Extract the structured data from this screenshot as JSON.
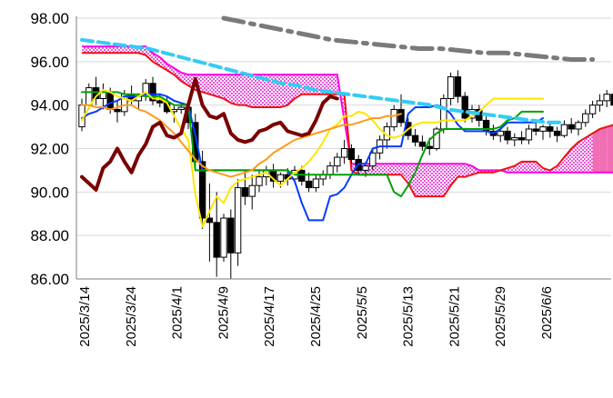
{
  "chart_data": {
    "type": "candlestick",
    "title": "",
    "xlabel": "",
    "ylabel": "",
    "ylim": [
      86,
      98
    ],
    "yticks": [
      "86.00",
      "88.00",
      "90.00",
      "92.00",
      "94.00",
      "96.00",
      "98.00"
    ],
    "x_tick_labels": [
      "2025/3/14",
      "2025/3/24",
      "2025/4/1",
      "2025/4/9",
      "2025/4/17",
      "2025/4/25",
      "2025/5/5",
      "2025/5/13",
      "2025/5/21",
      "2025/5/29",
      "2025/6/6"
    ],
    "grid": "horizontal",
    "legend": "none",
    "candles": [
      {
        "o": 93.0,
        "h": 94.3,
        "l": 92.8,
        "c": 94.0
      },
      {
        "o": 94.0,
        "h": 95.0,
        "l": 93.8,
        "c": 94.8
      },
      {
        "o": 94.8,
        "h": 95.3,
        "l": 94.0,
        "c": 94.3
      },
      {
        "o": 94.3,
        "h": 95.0,
        "l": 93.8,
        "c": 94.6
      },
      {
        "o": 94.6,
        "h": 94.8,
        "l": 93.6,
        "c": 93.8
      },
      {
        "o": 93.8,
        "h": 94.2,
        "l": 93.2,
        "c": 93.7
      },
      {
        "o": 93.7,
        "h": 94.7,
        "l": 93.5,
        "c": 94.5
      },
      {
        "o": 94.5,
        "h": 94.9,
        "l": 94.0,
        "c": 94.2
      },
      {
        "o": 94.2,
        "h": 94.5,
        "l": 93.8,
        "c": 94.4
      },
      {
        "o": 94.4,
        "h": 95.2,
        "l": 94.2,
        "c": 95.0
      },
      {
        "o": 95.0,
        "h": 95.3,
        "l": 94.0,
        "c": 94.2
      },
      {
        "o": 94.2,
        "h": 94.5,
        "l": 93.9,
        "c": 94.1
      },
      {
        "o": 94.1,
        "h": 94.4,
        "l": 93.6,
        "c": 93.7
      },
      {
        "o": 93.7,
        "h": 94.0,
        "l": 93.2,
        "c": 93.8
      },
      {
        "o": 93.8,
        "h": 94.1,
        "l": 93.6,
        "c": 93.9
      },
      {
        "o": 93.9,
        "h": 94.2,
        "l": 92.9,
        "c": 93.2
      },
      {
        "o": 93.2,
        "h": 93.6,
        "l": 91.0,
        "c": 91.4
      },
      {
        "o": 91.4,
        "h": 91.9,
        "l": 88.3,
        "c": 88.8
      },
      {
        "o": 88.8,
        "h": 90.4,
        "l": 86.8,
        "c": 88.6
      },
      {
        "o": 88.6,
        "h": 90.0,
        "l": 86.1,
        "c": 87.0
      },
      {
        "o": 87.0,
        "h": 89.0,
        "l": 86.8,
        "c": 88.8
      },
      {
        "o": 88.8,
        "h": 89.2,
        "l": 86.0,
        "c": 87.2
      },
      {
        "o": 87.2,
        "h": 90.6,
        "l": 86.6,
        "c": 90.2
      },
      {
        "o": 90.2,
        "h": 91.0,
        "l": 89.4,
        "c": 89.8
      },
      {
        "o": 89.8,
        "h": 90.8,
        "l": 89.2,
        "c": 90.3
      },
      {
        "o": 90.3,
        "h": 91.0,
        "l": 90.0,
        "c": 90.7
      },
      {
        "o": 90.7,
        "h": 91.2,
        "l": 90.3,
        "c": 91.0
      },
      {
        "o": 91.0,
        "h": 91.3,
        "l": 90.2,
        "c": 90.5
      },
      {
        "o": 90.5,
        "h": 90.9,
        "l": 90.2,
        "c": 90.8
      },
      {
        "o": 90.8,
        "h": 91.1,
        "l": 90.3,
        "c": 90.6
      },
      {
        "o": 90.6,
        "h": 91.2,
        "l": 90.4,
        "c": 91.0
      },
      {
        "o": 91.0,
        "h": 91.2,
        "l": 90.3,
        "c": 90.5
      },
      {
        "o": 90.5,
        "h": 90.9,
        "l": 90.0,
        "c": 90.2
      },
      {
        "o": 90.2,
        "h": 90.8,
        "l": 90.0,
        "c": 90.6
      },
      {
        "o": 90.6,
        "h": 91.0,
        "l": 90.3,
        "c": 90.8
      },
      {
        "o": 90.8,
        "h": 91.4,
        "l": 90.6,
        "c": 91.2
      },
      {
        "o": 91.2,
        "h": 91.8,
        "l": 90.9,
        "c": 91.6
      },
      {
        "o": 91.6,
        "h": 92.4,
        "l": 91.3,
        "c": 92.0
      },
      {
        "o": 92.0,
        "h": 92.2,
        "l": 91.3,
        "c": 91.5
      },
      {
        "o": 91.5,
        "h": 91.7,
        "l": 90.8,
        "c": 91.0
      },
      {
        "o": 91.0,
        "h": 91.3,
        "l": 90.7,
        "c": 91.2
      },
      {
        "o": 91.2,
        "h": 92.0,
        "l": 91.0,
        "c": 91.8
      },
      {
        "o": 91.8,
        "h": 92.6,
        "l": 91.5,
        "c": 92.4
      },
      {
        "o": 92.4,
        "h": 93.2,
        "l": 92.0,
        "c": 93.0
      },
      {
        "o": 93.0,
        "h": 94.0,
        "l": 92.8,
        "c": 93.8
      },
      {
        "o": 93.8,
        "h": 94.5,
        "l": 93.0,
        "c": 93.2
      },
      {
        "o": 93.2,
        "h": 93.4,
        "l": 92.4,
        "c": 92.6
      },
      {
        "o": 92.6,
        "h": 92.9,
        "l": 92.1,
        "c": 92.3
      },
      {
        "o": 92.3,
        "h": 92.6,
        "l": 91.9,
        "c": 92.1
      },
      {
        "o": 92.1,
        "h": 92.5,
        "l": 91.7,
        "c": 92.0
      },
      {
        "o": 92.0,
        "h": 93.0,
        "l": 91.9,
        "c": 92.9
      },
      {
        "o": 92.9,
        "h": 94.5,
        "l": 92.7,
        "c": 94.3
      },
      {
        "o": 94.3,
        "h": 95.5,
        "l": 94.0,
        "c": 95.3
      },
      {
        "o": 95.3,
        "h": 95.6,
        "l": 94.1,
        "c": 94.4
      },
      {
        "o": 94.4,
        "h": 94.6,
        "l": 93.2,
        "c": 93.4
      },
      {
        "o": 93.4,
        "h": 94.0,
        "l": 93.2,
        "c": 93.8
      },
      {
        "o": 93.8,
        "h": 94.0,
        "l": 93.0,
        "c": 93.3
      },
      {
        "o": 93.3,
        "h": 93.6,
        "l": 92.6,
        "c": 92.8
      },
      {
        "o": 92.8,
        "h": 93.1,
        "l": 92.4,
        "c": 92.6
      },
      {
        "o": 92.6,
        "h": 93.0,
        "l": 92.3,
        "c": 92.8
      },
      {
        "o": 92.8,
        "h": 93.0,
        "l": 92.2,
        "c": 92.4
      },
      {
        "o": 92.4,
        "h": 92.7,
        "l": 92.1,
        "c": 92.5
      },
      {
        "o": 92.5,
        "h": 92.8,
        "l": 92.2,
        "c": 92.4
      },
      {
        "o": 92.4,
        "h": 93.1,
        "l": 92.2,
        "c": 92.9
      },
      {
        "o": 92.9,
        "h": 93.2,
        "l": 92.6,
        "c": 92.8
      },
      {
        "o": 92.8,
        "h": 93.1,
        "l": 92.4,
        "c": 93.0
      },
      {
        "o": 93.0,
        "h": 93.2,
        "l": 92.5,
        "c": 92.8
      },
      {
        "o": 92.8,
        "h": 93.0,
        "l": 92.3,
        "c": 92.6
      },
      {
        "o": 92.6,
        "h": 93.3,
        "l": 92.5,
        "c": 93.1
      },
      {
        "o": 93.1,
        "h": 93.4,
        "l": 92.7,
        "c": 92.9
      },
      {
        "o": 92.9,
        "h": 93.3,
        "l": 92.6,
        "c": 93.2
      },
      {
        "o": 93.2,
        "h": 93.8,
        "l": 93.0,
        "c": 93.6
      },
      {
        "o": 93.6,
        "h": 94.2,
        "l": 93.4,
        "c": 94.0
      },
      {
        "o": 94.0,
        "h": 94.5,
        "l": 93.7,
        "c": 94.2
      },
      {
        "o": 94.2,
        "h": 94.7,
        "l": 93.9,
        "c": 94.5
      },
      {
        "o": 94.5,
        "h": 94.8,
        "l": 93.9,
        "c": 94.0
      }
    ],
    "series": [
      {
        "color": "#003cff",
        "width": 2,
        "values": [
          93.4,
          93.6,
          93.7,
          93.9,
          94.1,
          94.2,
          94.4,
          94.4,
          94.4,
          94.5,
          94.5,
          94.5,
          94.4,
          94.2,
          94.1,
          94.0,
          92.6,
          91.0,
          91.0,
          91.0,
          91.0,
          91.0,
          91.0,
          91.0,
          91.0,
          91.0,
          91.0,
          91.0,
          91.0,
          91.0,
          90.5,
          89.5,
          88.7,
          88.7,
          88.7,
          89.8,
          89.9,
          90.2,
          90.8,
          91.3,
          91.3,
          92.0,
          92.1,
          92.1,
          92.1,
          92.1,
          93.6,
          93.9,
          93.9,
          93.9,
          94.0,
          93.9,
          93.6,
          93.1,
          92.8,
          92.8,
          92.8,
          92.8,
          92.7,
          92.9,
          93.2,
          93.2,
          93.2,
          93.2,
          93.2,
          93.4
        ]
      },
      {
        "color": "#00a000",
        "width": 2,
        "values": [
          94.6,
          94.6,
          94.6,
          94.6,
          94.6,
          94.6,
          94.5,
          94.5,
          94.5,
          94.4,
          94.4,
          94.4,
          94.2,
          94.0,
          94.0,
          94.0,
          91.0,
          91.0,
          91.0,
          91.0,
          91.0,
          91.0,
          91.0,
          91.0,
          91.0,
          91.0,
          91.0,
          91.0,
          91.0,
          91.0,
          90.8,
          90.8,
          90.8,
          90.8,
          90.8,
          90.8,
          90.8,
          90.8,
          90.8,
          90.8,
          90.8,
          90.8,
          90.8,
          90.8,
          90.0,
          89.8,
          90.3,
          90.9,
          91.7,
          92.4,
          92.7,
          92.9,
          92.9,
          92.9,
          92.9,
          92.9,
          92.9,
          92.9,
          92.9,
          93.0,
          93.3,
          93.4,
          93.7,
          93.7,
          93.7,
          93.7
        ]
      },
      {
        "color": "#ffe600",
        "width": 2,
        "values": [
          93.3,
          93.9,
          94.4,
          94.7,
          94.6,
          94.4,
          94.3,
          94.2,
          94.4,
          94.6,
          94.3,
          94.3,
          94.1,
          93.5,
          92.9,
          92.4,
          89.9,
          88.4,
          89.1,
          89.8,
          89.5,
          90.2,
          90.5,
          90.6,
          90.7,
          90.8,
          90.9,
          90.6,
          90.3,
          90.6,
          90.9,
          91.1,
          91.4,
          91.8,
          92.3,
          92.9,
          93.1,
          93.5,
          93.5,
          93.7,
          93.6,
          93.3,
          92.9,
          92.6,
          92.5,
          92.6,
          92.9,
          93.1,
          93.2,
          93.2,
          93.2,
          93.3,
          93.3,
          93.3,
          93.3,
          93.5,
          93.7,
          94.0,
          94.3,
          94.3,
          94.3,
          94.3,
          94.3,
          94.3,
          94.3,
          94.3
        ]
      },
      {
        "color": "#ff9a1a",
        "width": 2,
        "values": [
          94.0,
          94.0,
          93.9,
          93.9,
          93.8,
          93.9,
          94.0,
          94.0,
          93.8,
          93.7,
          93.5,
          93.3,
          93.0,
          92.7,
          92.3,
          91.9,
          91.5,
          91.2,
          91.0,
          90.9,
          90.8,
          90.7,
          90.8,
          90.9,
          91.0,
          91.3,
          91.5,
          91.8,
          92.0,
          92.2,
          92.4,
          92.5,
          92.6,
          92.7,
          92.8,
          92.9,
          93.0,
          93.1,
          93.1,
          93.2,
          93.3,
          93.4,
          93.4,
          93.5,
          93.5,
          93.6
        ]
      },
      {
        "color": "#33ccf5",
        "width": 4,
        "dash": "12,6",
        "values": [
          97.0,
          96.9,
          96.8,
          96.7,
          96.6,
          96.4,
          96.2,
          96.0,
          95.8,
          95.6,
          95.4,
          95.2,
          95.0,
          94.9,
          94.7,
          94.6,
          94.5,
          94.4,
          94.3,
          94.2,
          94.1,
          94.0,
          93.8,
          93.7,
          93.6,
          93.5,
          93.4,
          93.3,
          93.2,
          93.2
        ]
      },
      {
        "color": "#7a7a7a",
        "width": 5,
        "dash": "22,8,4,8",
        "values": [
          98.0,
          97.8,
          97.6,
          97.4,
          97.2,
          97.0,
          96.9,
          96.8,
          96.7,
          96.6,
          96.6,
          96.5,
          96.4,
          96.4,
          96.3,
          96.2,
          96.1,
          96.1
        ]
      },
      {
        "color": "#7a0000",
        "width": 4,
        "values": [
          90.7,
          90.4,
          90.1,
          91.1,
          91.4,
          92.0,
          91.4,
          90.9,
          91.7,
          92.2,
          93.0,
          93.2,
          92.6,
          92.5,
          92.7,
          94.0,
          95.2,
          94.0,
          93.5,
          93.4,
          93.6,
          92.7,
          92.4,
          92.3,
          92.4,
          92.8,
          92.9,
          93.1,
          93.2,
          92.8,
          92.7,
          92.6,
          92.7,
          93.3,
          94.1,
          94.4,
          94.3
        ]
      }
    ],
    "cloud": {
      "span_a": [
        96.7,
        96.7,
        96.7,
        96.7,
        96.7,
        96.7,
        96.7,
        96.7,
        96.7,
        96.7,
        96.4,
        96.2,
        95.9,
        95.7,
        95.5,
        95.4,
        95.4,
        95.4,
        95.4,
        95.4,
        95.4,
        95.4,
        95.4,
        95.4,
        95.4,
        95.4,
        95.4,
        95.4,
        95.4,
        95.4,
        95.4,
        95.4,
        95.4,
        95.4,
        95.4,
        95.4,
        95.4,
        93.3,
        91.3,
        91.3,
        91.3,
        91.3,
        91.3,
        91.3,
        91.3,
        91.3,
        91.3,
        91.3,
        91.3,
        91.3,
        91.3,
        91.3,
        91.3,
        91.3,
        91.3,
        91.2,
        91.0,
        91.0,
        91.0,
        91.0,
        90.9,
        90.9,
        90.9,
        90.9,
        90.9,
        90.9,
        90.9,
        90.9,
        90.9,
        90.9,
        90.9,
        90.9,
        90.9,
        90.9,
        90.9,
        90.9,
        90.9,
        90.9
      ],
      "span_b": [
        96.4,
        96.4,
        96.4,
        96.4,
        96.4,
        96.4,
        96.4,
        96.4,
        96.4,
        96.3,
        96.0,
        95.8,
        95.6,
        95.4,
        95.1,
        94.9,
        94.7,
        94.6,
        94.5,
        94.4,
        94.3,
        94.1,
        94.0,
        94.0,
        93.9,
        93.9,
        93.9,
        93.9,
        93.9,
        94.0,
        94.3,
        94.5,
        94.5,
        94.5,
        94.5,
        94.5,
        94.5,
        94.5,
        91.0,
        90.8,
        90.8,
        90.8,
        90.8,
        90.8,
        90.8,
        90.8,
        90.4,
        89.8,
        89.8,
        89.8,
        89.8,
        89.8,
        90.3,
        90.7,
        90.7,
        90.8,
        90.9,
        90.9,
        90.9,
        91.0,
        91.1,
        91.2,
        91.4,
        91.4,
        91.4,
        91.1,
        91.0,
        91.2,
        91.6,
        92.0,
        92.3,
        92.5,
        92.7,
        92.9,
        93.0,
        93.1,
        93.1,
        93.1
      ]
    }
  }
}
